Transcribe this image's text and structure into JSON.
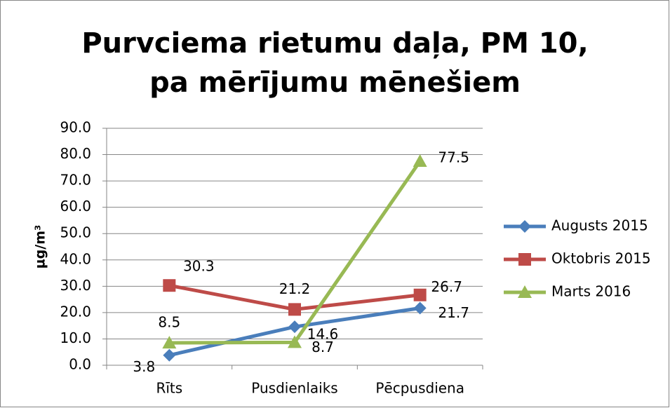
{
  "chart_data": {
    "type": "line",
    "title": "Purvciema rietumu daļa, PM 10, pa mērījumu mēnešiem",
    "y_label": "µg/m³",
    "categories": [
      "Rīts",
      "Pusdienlaiks",
      "Pēcpusdiena"
    ],
    "series": [
      {
        "name": "Augusts 2015",
        "color": "#4a7ebb",
        "marker": "diamond",
        "values": [
          3.8,
          14.6,
          21.7
        ]
      },
      {
        "name": "Oktobris 2015",
        "color": "#be4b48",
        "marker": "square",
        "values": [
          30.3,
          21.2,
          26.7
        ]
      },
      {
        "name": "Marts 2016",
        "color": "#98b954",
        "marker": "triangle",
        "values": [
          8.5,
          8.7,
          77.5
        ]
      }
    ],
    "ylim": [
      0,
      90
    ],
    "yticks": [
      {
        "value": 0,
        "label": "0.0"
      },
      {
        "value": 10,
        "label": "10.0"
      },
      {
        "value": 20,
        "label": "20.0"
      },
      {
        "value": 30,
        "label": "30.0"
      },
      {
        "value": 40,
        "label": "40.0"
      },
      {
        "value": 50,
        "label": "50.0"
      },
      {
        "value": 60,
        "label": "60.0"
      },
      {
        "value": 70,
        "label": "70.0"
      },
      {
        "value": 80,
        "label": "80.0"
      },
      {
        "value": 90,
        "label": "90.0"
      }
    ],
    "grid": true,
    "legend": "right"
  }
}
